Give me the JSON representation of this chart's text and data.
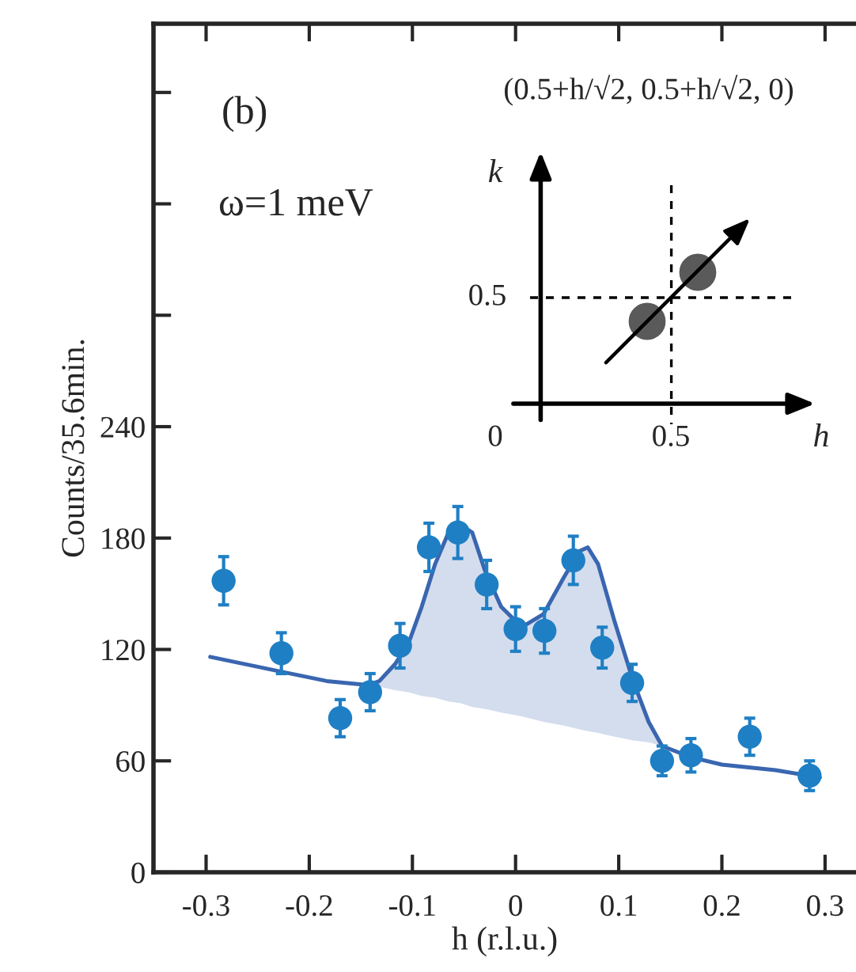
{
  "chart_data": {
    "type": "scatter",
    "xlabel": "h (r.l.u.)",
    "ylabel": "Counts/35.6min.",
    "annotations": [
      "(b)",
      "ω=1 meV",
      "(0.5+h/√2, 0.5+h/√2, 0)",
      "k",
      "0.5",
      "0",
      "0.5",
      "h"
    ],
    "xlim": [
      -0.351,
      0.33
    ],
    "xticks": [
      -0.3,
      -0.2,
      -0.1,
      0,
      0.1,
      0.2,
      0.3
    ],
    "ylim": [
      0,
      457
    ],
    "yticks": [
      0,
      60,
      120,
      180,
      240,
      {
        "value": 300,
        "label": null
      },
      {
        "value": 360,
        "label": null
      },
      {
        "value": 420,
        "label": null
      }
    ],
    "marker": "circle",
    "grid": false,
    "series": [
      {
        "type": "line",
        "marker": "none",
        "color": "#3a66b0",
        "x": [
          -0.296,
          -0.227,
          -0.183,
          -0.147,
          -0.141,
          -0.132,
          -0.117,
          -0.104,
          -0.091,
          -0.078,
          -0.065,
          -0.053,
          -0.042,
          -0.03,
          -0.014,
          0.006,
          0.027,
          0.047,
          0.062,
          0.07,
          0.08,
          0.096,
          0.114,
          0.129,
          0.142,
          0.17,
          0.2,
          0.252,
          0.295
        ],
        "values": [
          116,
          108,
          103,
          101,
          101,
          103,
          112,
          123,
          143,
          166,
          183,
          187,
          183,
          163,
          143,
          132,
          139,
          159,
          173,
          175,
          166,
          135,
          103,
          81,
          68,
          62,
          58,
          55,
          51
        ],
        "lower": [
          null,
          null,
          null,
          null,
          101,
          100,
          98,
          97,
          95,
          94,
          92,
          91,
          89,
          88,
          86,
          84,
          81,
          79,
          77,
          76,
          75,
          73,
          71,
          70,
          68,
          null,
          null,
          null,
          null
        ],
        "upper": [
          null,
          null,
          null,
          null,
          101,
          103,
          112,
          123,
          143,
          166,
          183,
          187,
          183,
          163,
          143,
          132,
          139,
          159,
          173,
          175,
          166,
          135,
          103,
          81,
          68,
          null,
          null,
          null,
          null
        ]
      },
      {
        "color": "#1f7fc4",
        "x": [
          -0.283,
          -0.227,
          -0.17,
          -0.141,
          -0.112,
          -0.084,
          -0.056,
          -0.028,
          0,
          0.028,
          0.056,
          0.084,
          0.113,
          0.142,
          0.17,
          0.227,
          0.285
        ],
        "values": [
          157,
          118,
          83,
          97,
          122,
          175,
          183,
          155,
          131,
          130,
          168,
          121,
          102,
          60,
          63,
          73,
          52
        ],
        "errors": [
          13,
          11,
          10,
          10,
          12,
          13,
          14,
          13,
          12,
          12,
          13,
          11,
          10,
          8,
          9,
          10,
          8
        ]
      }
    ]
  }
}
